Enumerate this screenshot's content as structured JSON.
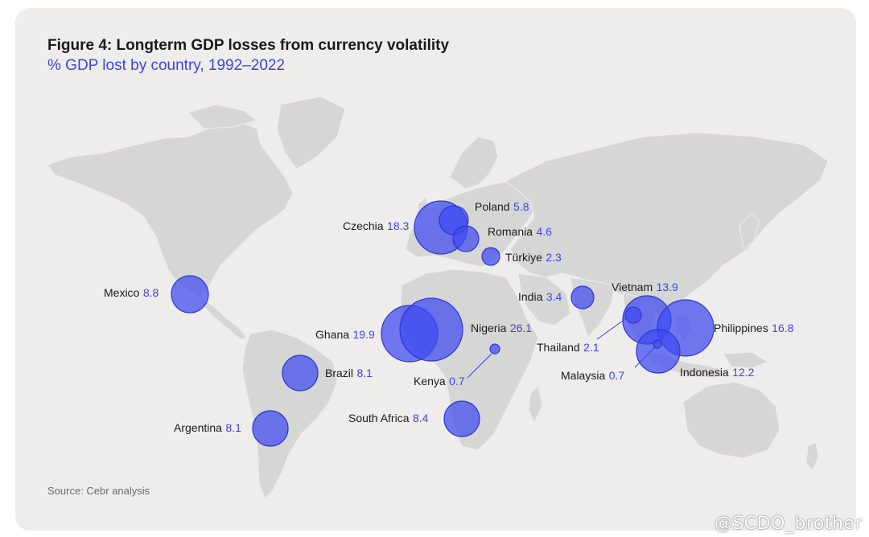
{
  "header": {
    "title": "Figure 4: Longterm GDP losses from currency volatility",
    "subtitle": "% GDP lost by country, 1992–2022"
  },
  "footer": {
    "source": "Source: Cebr analysis"
  },
  "watermark": "@SCDO_brother",
  "colors": {
    "bubble": "#3e4af0",
    "value_text": "#3d43e6",
    "land": "#d6d6d4",
    "background": "#eeedeb"
  },
  "chart_data": {
    "type": "proportional-symbol-map",
    "title": "Figure 4: Longterm GDP losses from currency volatility",
    "subtitle": "% GDP lost by country, 1992–2022",
    "unit": "% GDP lost",
    "countries": [
      {
        "name": "Poland",
        "value": 5.8,
        "lat": 52,
        "lon": 19
      },
      {
        "name": "Czechia",
        "value": 18.3,
        "lat": 50,
        "lon": 15
      },
      {
        "name": "Romania",
        "value": 4.6,
        "lat": 46,
        "lon": 25
      },
      {
        "name": "Türkiye",
        "value": 2.3,
        "lat": 39,
        "lon": 35
      },
      {
        "name": "Mexico",
        "value": 8.8,
        "lat": 23,
        "lon": -102
      },
      {
        "name": "India",
        "value": 3.4,
        "lat": 22,
        "lon": 78
      },
      {
        "name": "Vietnam",
        "value": 13.9,
        "lat": 16,
        "lon": 106
      },
      {
        "name": "Ghana",
        "value": 19.9,
        "lat": 8,
        "lon": -1
      },
      {
        "name": "Nigeria",
        "value": 26.1,
        "lat": 9,
        "lon": 8
      },
      {
        "name": "Philippines",
        "value": 16.8,
        "lat": 12,
        "lon": 122
      },
      {
        "name": "Thailand",
        "value": 2.1,
        "lat": 15,
        "lon": 101
      },
      {
        "name": "Kenya",
        "value": 0.7,
        "lat": 0,
        "lon": 38
      },
      {
        "name": "Malaysia",
        "value": 0.7,
        "lat": 4,
        "lon": 109
      },
      {
        "name": "Indonesia",
        "value": 12.2,
        "lat": -2,
        "lon": 115
      },
      {
        "name": "Brazil",
        "value": 8.1,
        "lat": -10,
        "lon": -53
      },
      {
        "name": "South Africa",
        "value": 8.4,
        "lat": -29,
        "lon": 25
      },
      {
        "name": "Argentina",
        "value": 8.1,
        "lat": -34,
        "lon": -64
      }
    ]
  }
}
